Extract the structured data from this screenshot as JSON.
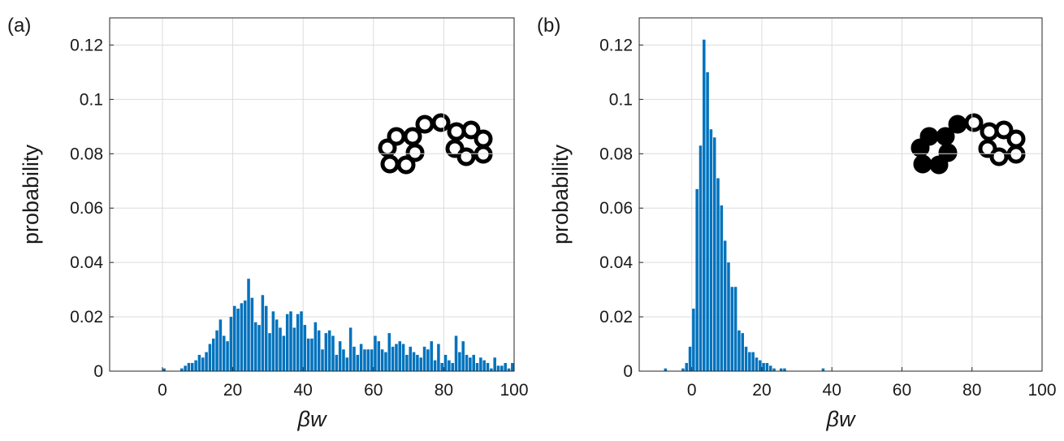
{
  "chart_data": [
    {
      "type": "histogram",
      "label": "(a)",
      "x_label": "βw",
      "y_label": "probability",
      "color": "#0072bd",
      "grid": true,
      "xlim": [
        -15,
        100
      ],
      "ylim": [
        0,
        0.13
      ],
      "xticks": [
        0,
        20,
        40,
        60,
        80,
        100
      ],
      "yticks": [
        0,
        0.02,
        0.04,
        0.06,
        0.08,
        0.1,
        0.12
      ],
      "bins": [
        0,
        1,
        2,
        3,
        4,
        5,
        6,
        7,
        8,
        9,
        10,
        11,
        12,
        13,
        14,
        15,
        16,
        17,
        18,
        19,
        20,
        21,
        22,
        23,
        24,
        25,
        26,
        27,
        28,
        29,
        30,
        31,
        32,
        33,
        34,
        35,
        36,
        37,
        38,
        39,
        40,
        41,
        42,
        43,
        44,
        45,
        46,
        47,
        48,
        49,
        50,
        51,
        52,
        53,
        54,
        55,
        56,
        57,
        58,
        59,
        60,
        61,
        62,
        63,
        64,
        65,
        66,
        67,
        68,
        69,
        70,
        71,
        72,
        73,
        74,
        75,
        76,
        77,
        78,
        79,
        80,
        81,
        82,
        83,
        84,
        85,
        86,
        87,
        88,
        89,
        90,
        91,
        92,
        93,
        94,
        95,
        96,
        97,
        98,
        99,
        100
      ],
      "values": [
        0.001,
        0,
        0,
        0,
        0,
        0.001,
        0.002,
        0.003,
        0.003,
        0.004,
        0.006,
        0.005,
        0.007,
        0.01,
        0.012,
        0.015,
        0.019,
        0.013,
        0.011,
        0.02,
        0.024,
        0.023,
        0.025,
        0.026,
        0.034,
        0.027,
        0.018,
        0.017,
        0.028,
        0.024,
        0.014,
        0.022,
        0.019,
        0.016,
        0.013,
        0.021,
        0.022,
        0.016,
        0.021,
        0.022,
        0.017,
        0.012,
        0.012,
        0.018,
        0.015,
        0.008,
        0.014,
        0.015,
        0.013,
        0.006,
        0.011,
        0.008,
        0.005,
        0.016,
        0.009,
        0.006,
        0.01,
        0.008,
        0.008,
        0.008,
        0.013,
        0.011,
        0.008,
        0.007,
        0.014,
        0.009,
        0.01,
        0.011,
        0.01,
        0.006,
        0.009,
        0.007,
        0.006,
        0.005,
        0.009,
        0.008,
        0.011,
        0.004,
        0.01,
        0.003,
        0.006,
        0.004,
        0.003,
        0.013,
        0.007,
        0.011,
        0.006,
        0.005,
        0.006,
        0.003,
        0.005,
        0.004,
        0.003,
        0.001,
        0.005,
        0.002,
        0.002,
        0.003,
        0.001,
        0.003
      ]
    },
    {
      "type": "histogram",
      "label": "(b)",
      "x_label": "βw",
      "y_label": "probability",
      "color": "#0072bd",
      "grid": true,
      "xlim": [
        -15,
        100
      ],
      "ylim": [
        0,
        0.13
      ],
      "xticks": [
        0,
        20,
        40,
        60,
        80,
        100
      ],
      "yticks": [
        0,
        0.02,
        0.04,
        0.06,
        0.08,
        0.1,
        0.12
      ],
      "bins": [
        -8,
        -7,
        -6,
        -5,
        -4,
        -3,
        -2,
        -1,
        0,
        1,
        2,
        3,
        4,
        5,
        6,
        7,
        8,
        9,
        10,
        11,
        12,
        13,
        14,
        15,
        16,
        17,
        18,
        19,
        20,
        21,
        22,
        23,
        24,
        25,
        26,
        27,
        28,
        29,
        30,
        31,
        32,
        33,
        34,
        35,
        36,
        37,
        38
      ],
      "values": [
        0.001,
        0,
        0,
        0,
        0,
        0.001,
        0.003,
        0.009,
        0.023,
        0.067,
        0.083,
        0.122,
        0.11,
        0.089,
        0.086,
        0.071,
        0.061,
        0.048,
        0.04,
        0.031,
        0.031,
        0.015,
        0.014,
        0.009,
        0.007,
        0.007,
        0.005,
        0.004,
        0.003,
        0.003,
        0.002,
        0.001,
        0,
        0.001,
        0.001,
        0,
        0,
        0,
        0,
        0,
        0,
        0,
        0,
        0,
        0,
        0.001
      ]
    }
  ]
}
